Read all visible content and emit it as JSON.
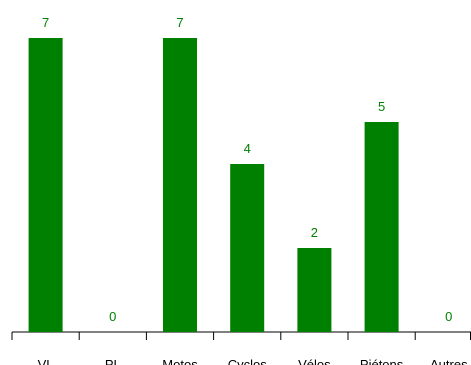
{
  "chart_data": {
    "type": "bar",
    "categories": [
      "VL",
      "PL",
      "Motos",
      "Cyclos",
      "Vélos",
      "Piétons",
      "Autres"
    ],
    "values": [
      7,
      0,
      7,
      4,
      2,
      5,
      0
    ],
    "data_labels": [
      "7",
      "0",
      "7",
      "4",
      "2",
      "5",
      "0"
    ],
    "ylim": [
      0,
      7
    ],
    "grid": false,
    "legend": "none",
    "colors": {
      "bar": "#008000",
      "label": "#008000",
      "axis": "#000000"
    }
  }
}
